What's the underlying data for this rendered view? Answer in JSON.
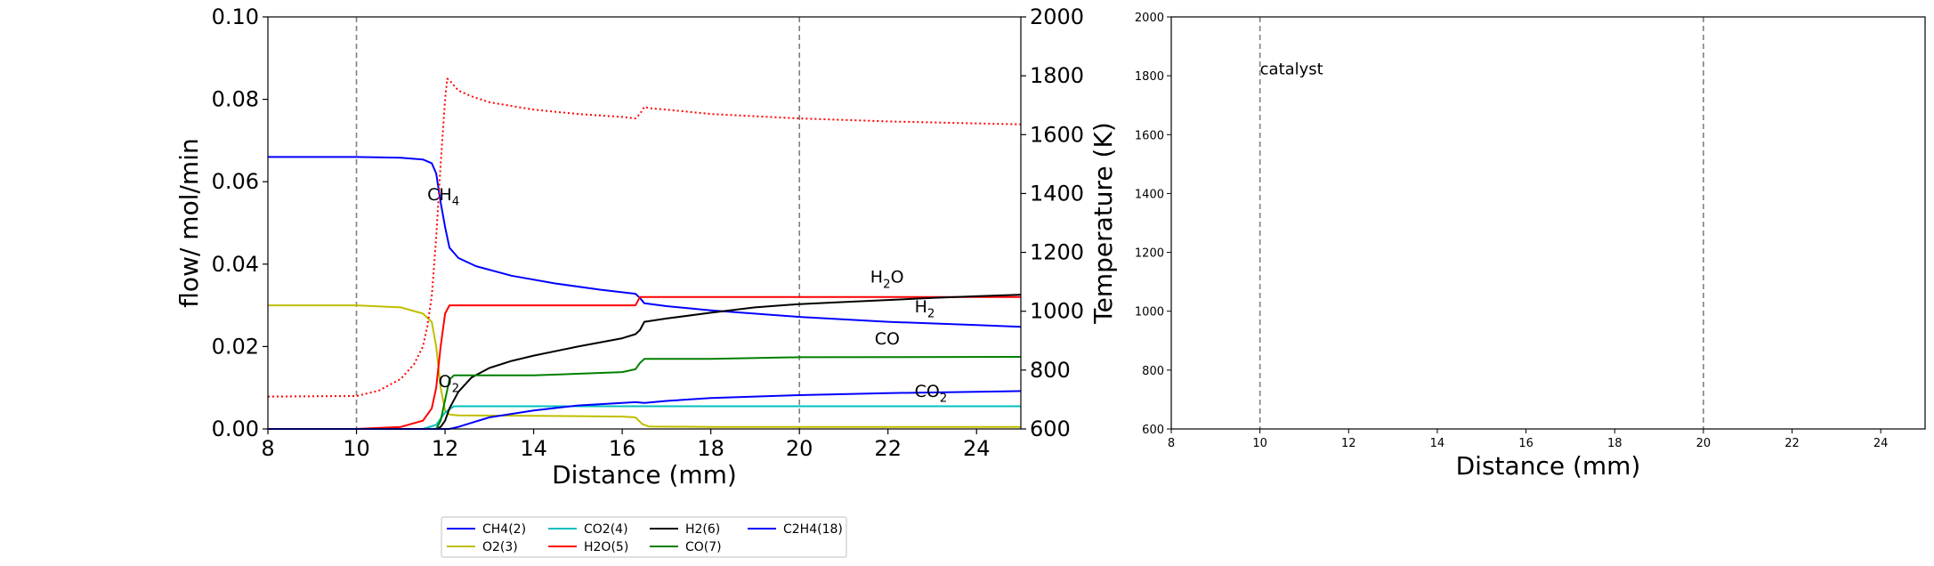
{
  "chart_data": [
    {
      "type": "line",
      "title": "",
      "xlabel": "Distance (mm)",
      "ylabel": "flow/ mol/min",
      "y2label": "Temperature (K)",
      "xlim": [
        8,
        25
      ],
      "ylim": [
        0,
        0.1
      ],
      "y2lim": [
        600,
        2000
      ],
      "xticks": [
        "8",
        "10",
        "12",
        "14",
        "16",
        "18",
        "20",
        "22",
        "24"
      ],
      "xtick_values": [
        8,
        10,
        12,
        14,
        16,
        18,
        20,
        22,
        24
      ],
      "yticks": [
        "0.00",
        "0.02",
        "0.04",
        "0.06",
        "0.08",
        "0.10"
      ],
      "ytick_values": [
        0,
        0.02,
        0.04,
        0.06,
        0.08,
        0.1
      ],
      "y2ticks": [
        "600",
        "800",
        "1000",
        "1200",
        "1400",
        "1600",
        "1800",
        "2000"
      ],
      "y2tick_values": [
        600,
        800,
        1000,
        1200,
        1400,
        1600,
        1800,
        2000
      ],
      "vlines": [
        10,
        20
      ],
      "legend_position": "below-center",
      "series": [
        {
          "name": "CH4(2)",
          "color": "#0000ff",
          "style": "solid",
          "axis": "left",
          "x": [
            8,
            10,
            11,
            11.5,
            11.7,
            11.8,
            11.9,
            12.0,
            12.1,
            12.3,
            12.7,
            13.5,
            14.5,
            15.5,
            16.3,
            16.4,
            16.5,
            17,
            18,
            20,
            22,
            24,
            25
          ],
          "y": [
            0.066,
            0.066,
            0.0658,
            0.0654,
            0.0645,
            0.062,
            0.055,
            0.049,
            0.044,
            0.0415,
            0.0395,
            0.0372,
            0.0353,
            0.0338,
            0.0328,
            0.0318,
            0.0305,
            0.0298,
            0.0288,
            0.0272,
            0.026,
            0.0252,
            0.0248
          ]
        },
        {
          "name": "O2(3)",
          "color": "#bfbf00",
          "style": "solid",
          "axis": "left",
          "x": [
            8,
            10,
            11,
            11.5,
            11.7,
            11.8,
            11.9,
            12.0,
            12.1,
            12.3,
            14,
            16,
            16.3,
            16.45,
            16.6,
            18,
            20,
            25
          ],
          "y": [
            0.03,
            0.03,
            0.0295,
            0.028,
            0.026,
            0.02,
            0.01,
            0.0045,
            0.0035,
            0.0033,
            0.0032,
            0.003,
            0.0028,
            0.0012,
            0.0006,
            0.0005,
            0.0005,
            0.0005
          ]
        },
        {
          "name": "CO2(4)",
          "color": "#00bfbf",
          "style": "solid",
          "axis": "left",
          "x": [
            8,
            11.5,
            11.8,
            12.0,
            12.2,
            12.5,
            25
          ],
          "y": [
            0,
            0,
            0.001,
            0.004,
            0.0055,
            0.0055,
            0.0055
          ]
        },
        {
          "name": "H2O(5)",
          "color": "#ff0000",
          "style": "solid",
          "axis": "left",
          "x": [
            8,
            10,
            11,
            11.5,
            11.7,
            11.8,
            11.9,
            12.0,
            12.1,
            12.2,
            16.3,
            16.4,
            16.5,
            20,
            25
          ],
          "y": [
            0,
            0,
            0.0005,
            0.002,
            0.005,
            0.01,
            0.02,
            0.028,
            0.03,
            0.03,
            0.03,
            0.032,
            0.032,
            0.032,
            0.032
          ]
        },
        {
          "name": "H2(6)",
          "color": "#000000",
          "style": "solid",
          "axis": "left",
          "x": [
            8,
            11.8,
            11.9,
            12.0,
            12.1,
            12.3,
            12.6,
            13,
            13.5,
            14,
            15,
            16,
            16.3,
            16.4,
            16.5,
            17,
            18,
            19,
            20,
            21,
            22,
            23,
            24,
            25
          ],
          "y": [
            0,
            0,
            0.0005,
            0.002,
            0.005,
            0.009,
            0.0125,
            0.0148,
            0.0165,
            0.0178,
            0.02,
            0.022,
            0.023,
            0.024,
            0.026,
            0.0268,
            0.0282,
            0.0295,
            0.0303,
            0.0308,
            0.0313,
            0.0318,
            0.0322,
            0.0326
          ]
        },
        {
          "name": "CO(7)",
          "color": "#007f00",
          "style": "solid",
          "axis": "left",
          "x": [
            8,
            11.8,
            11.9,
            12.0,
            12.1,
            12.2,
            14,
            16,
            16.3,
            16.4,
            16.5,
            18,
            20,
            25
          ],
          "y": [
            0,
            0,
            0.002,
            0.007,
            0.012,
            0.013,
            0.013,
            0.0138,
            0.0145,
            0.016,
            0.017,
            0.017,
            0.0174,
            0.0175
          ]
        },
        {
          "name": "C2H4(18)",
          "color": "#0000ff",
          "style": "solid",
          "axis": "left",
          "x": [
            8,
            12.1,
            12.3,
            12.6,
            13,
            14,
            15,
            16,
            16.3,
            16.5,
            17,
            18,
            20,
            22,
            24,
            25
          ],
          "y": [
            0,
            0,
            0.0005,
            0.0015,
            0.0028,
            0.0045,
            0.0057,
            0.0063,
            0.0065,
            0.0063,
            0.0068,
            0.0075,
            0.0082,
            0.0087,
            0.009,
            0.0092
          ]
        },
        {
          "name": "",
          "color": "#ff0000",
          "style": "dotted",
          "axis": "right",
          "x": [
            8,
            10,
            10.5,
            11,
            11.3,
            11.5,
            11.6,
            11.7,
            11.8,
            11.9,
            12.0,
            12.05,
            12.1,
            12.3,
            12.6,
            13,
            14,
            15,
            16,
            16.3,
            16.4,
            16.5,
            16.6,
            17,
            18,
            20,
            22,
            24,
            25
          ],
          "y": [
            710,
            712,
            730,
            770,
            820,
            880,
            950,
            1050,
            1250,
            1500,
            1720,
            1790,
            1785,
            1750,
            1730,
            1710,
            1685,
            1670,
            1660,
            1655,
            1670,
            1695,
            1690,
            1685,
            1670,
            1655,
            1645,
            1638,
            1635
          ]
        }
      ],
      "annotations": [
        {
          "text": "CH",
          "sub": "4",
          "color": "#0000ff",
          "x": 11.6,
          "y": 0.0555
        },
        {
          "text": "H",
          "sub": "2",
          "suffix": "O",
          "color": "#ff0000",
          "x": 21.6,
          "y": 0.0355
        },
        {
          "text": "H",
          "sub": "2",
          "color": "#000000",
          "x": 22.6,
          "y": 0.0283
        },
        {
          "text": "CO",
          "color": "#007f00",
          "x": 21.7,
          "y": 0.0205
        },
        {
          "text": "CO",
          "sub": "2",
          "color": "#00bfbf",
          "x": 22.6,
          "y": 0.0078
        },
        {
          "text": "O",
          "sub": "2",
          "color": "#bfbf00",
          "x": 11.85,
          "y": 0.0102
        }
      ]
    },
    {
      "type": "line",
      "title": "",
      "xlabel": "Distance (mm)",
      "ylabel": "",
      "xlim": [
        8,
        25
      ],
      "ylim": [
        600,
        2000
      ],
      "xticks": [
        "8",
        "10",
        "12",
        "14",
        "16",
        "18",
        "20",
        "22",
        "24"
      ],
      "xtick_values": [
        8,
        10,
        12,
        14,
        16,
        18,
        20,
        22,
        24
      ],
      "yticks": [
        "600",
        "800",
        "1000",
        "1200",
        "1400",
        "1600",
        "1800",
        "2000"
      ],
      "ytick_values": [
        600,
        800,
        1000,
        1200,
        1400,
        1600,
        1800,
        2000
      ],
      "vlines": [
        10,
        20
      ],
      "annotations": [
        {
          "text": "catalyst",
          "color": "#000000",
          "x": 10.0,
          "y": 1805
        }
      ],
      "series": []
    }
  ]
}
